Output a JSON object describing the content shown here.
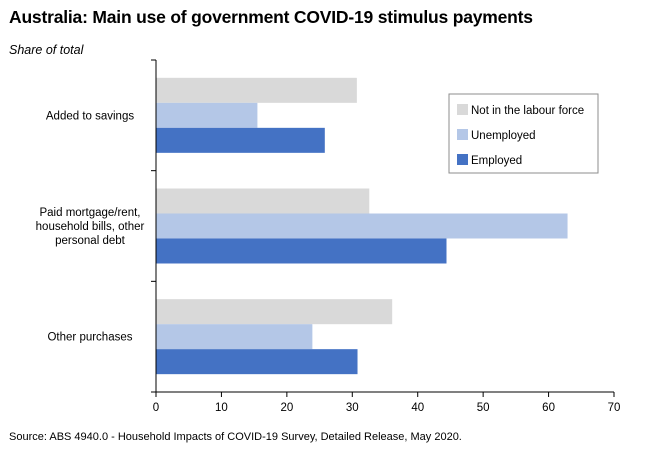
{
  "title": "Australia: Main use of government COVID-19 stimulus payments",
  "subtitle": "Share of total",
  "source": "Source: ABS 4940.0 - Household Impacts of COVID-19 Survey, Detailed Release, May 2020.",
  "chart_data": {
    "type": "bar",
    "orientation": "horizontal",
    "categories": [
      [
        "Added to savings"
      ],
      [
        "Paid mortgage/rent,",
        "household bills, other",
        "personal debt"
      ],
      [
        "Other purchases"
      ]
    ],
    "series": [
      {
        "name": "Not in the labour force",
        "color": "#d9d9d9",
        "values": [
          30.7,
          32.6,
          36.1
        ]
      },
      {
        "name": "Unemployed",
        "color": "#b4c7e7",
        "values": [
          15.5,
          62.9,
          23.9
        ]
      },
      {
        "name": "Employed",
        "color": "#4472c4",
        "values": [
          25.8,
          44.4,
          30.8
        ]
      }
    ],
    "xlim": [
      0,
      70
    ],
    "xticks": [
      0,
      10,
      20,
      30,
      40,
      50,
      60,
      70
    ],
    "grid": false,
    "legend_position": "top-right"
  }
}
